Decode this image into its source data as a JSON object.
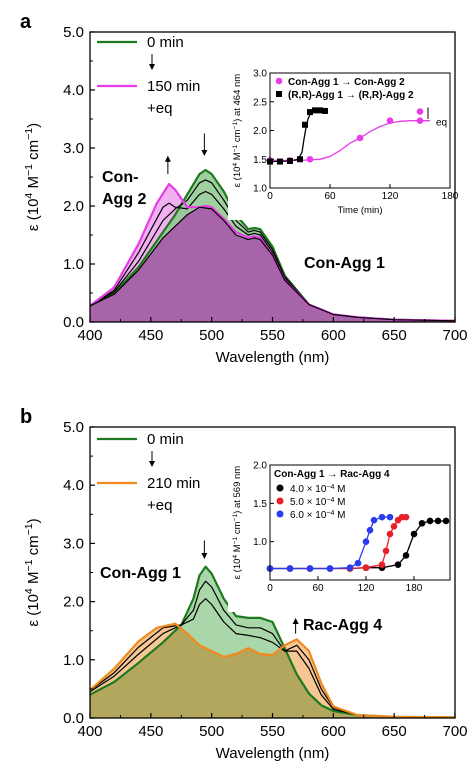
{
  "colors": {
    "green": "#1e7a1e",
    "magenta": "#e83ce8",
    "orange": "#f08a1e",
    "black": "#000000",
    "red": "#e8202a",
    "blue": "#2a3cf0",
    "fill_a": "#a85aa8",
    "fill_b_green": "#9ad09a",
    "fill_b_orange": "#f5c08a",
    "fill_b_olive": "#b3a35a"
  },
  "chart_data": [
    {
      "id": "a",
      "type": "line",
      "panel_label": "a",
      "xlabel": "Wavelength (nm)",
      "ylabel_pre": "ε (10",
      "ylabel_sup1": "4",
      "ylabel_mid": " M",
      "ylabel_sup2": "−1",
      "ylabel_mid2": " cm",
      "ylabel_sup3": "−1",
      "ylabel_post": ")",
      "xlim": [
        400,
        700
      ],
      "ylim": [
        0,
        5
      ],
      "xticks": [
        "400",
        "450",
        "500",
        "550",
        "600",
        "650",
        "700"
      ],
      "yticks": [
        "0.0",
        "1.0",
        "2.0",
        "3.0",
        "4.0",
        "5.0"
      ],
      "legend": [
        {
          "label": "0 min",
          "color": "green"
        },
        {
          "label": "150 min",
          "color": "magenta"
        }
      ],
      "legend_extra": "+eq",
      "annotations": [
        {
          "text": "Con-",
          "color": "magenta"
        },
        {
          "text": "Agg 2",
          "color": "magenta"
        },
        {
          "text": "Con-Agg 1",
          "color": "green"
        }
      ],
      "series": [
        {
          "name": "0 min",
          "color": "green",
          "x": [
            400,
            420,
            440,
            460,
            470,
            480,
            490,
            495,
            500,
            510,
            520,
            530,
            535,
            540,
            550,
            560,
            580,
            600,
            620,
            650,
            700
          ],
          "y": [
            0.28,
            0.5,
            0.95,
            1.55,
            1.85,
            2.2,
            2.55,
            2.62,
            2.55,
            2.25,
            1.85,
            1.6,
            1.62,
            1.6,
            1.3,
            0.8,
            0.3,
            0.13,
            0.08,
            0.04,
            0.02
          ]
        },
        {
          "name": "intermediate 1",
          "color": "black",
          "x": [
            400,
            420,
            440,
            460,
            470,
            480,
            490,
            495,
            500,
            510,
            520,
            530,
            535,
            540,
            550,
            560,
            580,
            600,
            620,
            650,
            700
          ],
          "y": [
            0.28,
            0.52,
            1.05,
            1.75,
            1.95,
            2.1,
            2.4,
            2.45,
            2.4,
            2.1,
            1.75,
            1.55,
            1.58,
            1.55,
            1.25,
            0.78,
            0.3,
            0.13,
            0.08,
            0.04,
            0.02
          ]
        },
        {
          "name": "intermediate 2",
          "color": "black",
          "x": [
            400,
            420,
            440,
            460,
            465,
            470,
            480,
            490,
            495,
            500,
            510,
            520,
            530,
            535,
            540,
            550,
            560,
            580,
            600,
            620,
            650,
            700
          ],
          "y": [
            0.28,
            0.55,
            1.2,
            1.98,
            2.05,
            1.98,
            1.95,
            2.2,
            2.25,
            2.2,
            1.95,
            1.65,
            1.5,
            1.53,
            1.5,
            1.2,
            0.75,
            0.3,
            0.13,
            0.08,
            0.04,
            0.02
          ]
        },
        {
          "name": "150 min",
          "color": "magenta",
          "x": [
            400,
            420,
            440,
            455,
            465,
            470,
            480,
            490,
            495,
            500,
            510,
            520,
            530,
            535,
            540,
            550,
            560,
            580,
            600,
            620,
            650,
            700
          ],
          "y": [
            0.28,
            0.6,
            1.35,
            2.05,
            2.38,
            2.28,
            1.98,
            1.98,
            2.0,
            1.98,
            1.78,
            1.55,
            1.45,
            1.48,
            1.45,
            1.15,
            0.72,
            0.3,
            0.13,
            0.08,
            0.04,
            0.02
          ]
        },
        {
          "name": "baseline",
          "color": "black",
          "x": [
            400,
            420,
            440,
            460,
            480,
            490,
            500,
            510,
            520,
            530,
            535,
            540,
            550,
            560,
            580,
            600,
            620,
            650,
            700
          ],
          "y": [
            0.28,
            0.48,
            0.9,
            1.45,
            1.85,
            1.98,
            1.95,
            1.75,
            1.5,
            1.42,
            1.45,
            1.42,
            1.15,
            0.72,
            0.3,
            0.13,
            0.08,
            0.04,
            0.02
          ]
        }
      ],
      "inset": {
        "xlabel": "Time (min)",
        "ylabel_pre": "ε (10",
        "ylabel_sup1": "4",
        "ylabel_mid": " M",
        "ylabel_sup2": "−1",
        "ylabel_mid2": " cm",
        "ylabel_sup3": "−1",
        "ylabel_post": ") at 464 nm",
        "xlim": [
          0,
          180
        ],
        "ylim": [
          1.0,
          3.0
        ],
        "xticks": [
          "0",
          "60",
          "120",
          "180"
        ],
        "yticks": [
          "1.0",
          "1.5",
          "2.0",
          "2.5",
          "3.0"
        ],
        "legend": [
          {
            "label": "Con-Agg 1",
            "arrow": "→",
            "target": "Con-Agg 2",
            "color": "magenta",
            "marker": "circle"
          },
          {
            "label": "(R,R)-Agg 1",
            "arrow": "→",
            "target": "(R,R)-Agg 2",
            "color": "black",
            "marker": "square"
          }
        ],
        "eq_label": "eq",
        "series": [
          {
            "name": "Con-Agg 1 → Con-Agg 2",
            "color": "magenta",
            "marker": "circle",
            "x": [
              0,
              20,
              40,
              90,
              120,
              150
            ],
            "y": [
              1.48,
              1.48,
              1.5,
              1.87,
              2.17,
              2.17
            ]
          },
          {
            "name": "(R,R)-Agg 1 → (R,R)-Agg 2",
            "color": "black",
            "marker": "square",
            "x": [
              0,
              10,
              20,
              30,
              35,
              40,
              45,
              50,
              55
            ],
            "y": [
              1.46,
              1.46,
              1.47,
              1.5,
              2.1,
              2.32,
              2.35,
              2.35,
              2.34
            ]
          },
          {
            "name": "eq",
            "color": "magenta",
            "marker": "circle",
            "x": [
              150
            ],
            "y": [
              2.33
            ]
          }
        ],
        "fits": [
          {
            "color": "magenta",
            "x": [
              0,
              30,
              50,
              60,
              70,
              80,
              90,
              100,
              110,
              120,
              130,
              140,
              150,
              160
            ],
            "y": [
              1.48,
              1.48,
              1.5,
              1.55,
              1.65,
              1.78,
              1.87,
              1.98,
              2.07,
              2.13,
              2.16,
              2.17,
              2.17,
              2.17
            ]
          },
          {
            "color": "black",
            "x": [
              0,
              20,
              28,
              32,
              34,
              36,
              38,
              40,
              44,
              50,
              55
            ],
            "y": [
              1.46,
              1.47,
              1.5,
              1.62,
              1.85,
              2.05,
              2.2,
              2.28,
              2.33,
              2.35,
              2.35
            ]
          }
        ]
      }
    },
    {
      "id": "b",
      "type": "line",
      "panel_label": "b",
      "xlabel": "Wavelength (nm)",
      "ylabel_pre": "ε (10",
      "ylabel_sup1": "4",
      "ylabel_mid": " M",
      "ylabel_sup2": "−1",
      "ylabel_mid2": " cm",
      "ylabel_sup3": "−1",
      "ylabel_post": ")",
      "xlim": [
        400,
        700
      ],
      "ylim": [
        0,
        5
      ],
      "xticks": [
        "400",
        "450",
        "500",
        "550",
        "600",
        "650",
        "700"
      ],
      "yticks": [
        "0.0",
        "1.0",
        "2.0",
        "3.0",
        "4.0",
        "5.0"
      ],
      "legend": [
        {
          "label": "0 min",
          "color": "green"
        },
        {
          "label": "210 min",
          "color": "orange"
        }
      ],
      "legend_extra": "+eq",
      "annotations": [
        {
          "text": "Con-Agg 1",
          "color": "green"
        },
        {
          "text": "Rac-Agg 4",
          "color": "orange"
        }
      ],
      "series": [
        {
          "name": "0 min",
          "color": "green",
          "x": [
            400,
            420,
            440,
            460,
            475,
            485,
            490,
            495,
            500,
            510,
            520,
            530,
            540,
            550,
            560,
            570,
            580,
            590,
            600,
            620,
            650,
            700
          ],
          "y": [
            0.4,
            0.62,
            0.95,
            1.3,
            1.6,
            2.05,
            2.45,
            2.6,
            2.48,
            2.05,
            1.75,
            1.72,
            1.72,
            1.65,
            1.2,
            0.75,
            0.42,
            0.22,
            0.12,
            0.05,
            0.02,
            0.01
          ]
        },
        {
          "name": "intermediate 1",
          "color": "black",
          "x": [
            400,
            420,
            440,
            460,
            475,
            485,
            490,
            495,
            500,
            510,
            520,
            530,
            540,
            550,
            560,
            570,
            580,
            590,
            600,
            620,
            650,
            700
          ],
          "y": [
            0.45,
            0.72,
            1.1,
            1.45,
            1.6,
            1.85,
            2.2,
            2.35,
            2.25,
            1.85,
            1.6,
            1.55,
            1.55,
            1.45,
            1.15,
            1.15,
            0.85,
            0.4,
            0.15,
            0.05,
            0.02,
            0.01
          ]
        },
        {
          "name": "intermediate 2",
          "color": "black",
          "x": [
            400,
            420,
            440,
            460,
            475,
            485,
            490,
            495,
            500,
            510,
            520,
            530,
            540,
            550,
            560,
            570,
            580,
            590,
            600,
            620,
            650,
            700
          ],
          "y": [
            0.47,
            0.78,
            1.22,
            1.55,
            1.6,
            1.7,
            1.95,
            2.05,
            1.95,
            1.65,
            1.45,
            1.42,
            1.38,
            1.3,
            1.15,
            1.25,
            1.0,
            0.5,
            0.18,
            0.05,
            0.02,
            0.01
          ]
        },
        {
          "name": "210 min",
          "color": "orange",
          "x": [
            400,
            420,
            440,
            455,
            470,
            480,
            490,
            500,
            510,
            520,
            530,
            540,
            550,
            560,
            570,
            580,
            590,
            600,
            620,
            650,
            700
          ],
          "y": [
            0.48,
            0.85,
            1.32,
            1.55,
            1.62,
            1.45,
            1.25,
            1.15,
            1.05,
            1.1,
            1.2,
            1.1,
            1.08,
            1.25,
            1.35,
            1.15,
            0.6,
            0.2,
            0.05,
            0.02,
            0.01
          ]
        }
      ],
      "inset": {
        "xlabel": "",
        "ylabel_pre": "ε (10",
        "ylabel_sup1": "4",
        "ylabel_mid": " M",
        "ylabel_sup2": "−1",
        "ylabel_mid2": " cm",
        "ylabel_sup3": "−1",
        "ylabel_post": ") at 569 nm",
        "title": "Con-Agg 1 → Rac-Agg 4",
        "xlim": [
          0,
          225
        ],
        "ylim": [
          0.5,
          2.0
        ],
        "xticks": [
          "0",
          "60",
          "120",
          "180"
        ],
        "yticks": [
          "1.0",
          "1.5",
          "2.0"
        ],
        "legend": [
          {
            "label": "4.0 × 10",
            "sup": "−4",
            "unit": " M",
            "color": "black"
          },
          {
            "label": "5.0 × 10",
            "sup": "−4",
            "unit": " M",
            "color": "red"
          },
          {
            "label": "6.0 × 10",
            "sup": "−4",
            "unit": " M",
            "color": "blue"
          }
        ],
        "series": [
          {
            "name": "4.0 × 10^-4 M",
            "color": "black",
            "x": [
              0,
              25,
              50,
              75,
              100,
              120,
              140,
              160,
              170,
              180,
              190,
              200,
              210,
              220
            ],
            "y": [
              0.65,
              0.65,
              0.65,
              0.65,
              0.65,
              0.66,
              0.66,
              0.7,
              0.82,
              1.1,
              1.24,
              1.27,
              1.27,
              1.27
            ]
          },
          {
            "name": "5.0 × 10^-4 M",
            "color": "red",
            "x": [
              0,
              25,
              50,
              75,
              100,
              120,
              140,
              145,
              150,
              155,
              160,
              165,
              170
            ],
            "y": [
              0.65,
              0.65,
              0.65,
              0.65,
              0.65,
              0.66,
              0.7,
              0.88,
              1.1,
              1.2,
              1.28,
              1.32,
              1.32
            ]
          },
          {
            "name": "6.0 × 10^-4 M",
            "color": "blue",
            "x": [
              0,
              25,
              50,
              75,
              100,
              110,
              120,
              125,
              130,
              140,
              150
            ],
            "y": [
              0.65,
              0.65,
              0.65,
              0.65,
              0.66,
              0.72,
              1.0,
              1.15,
              1.28,
              1.32,
              1.32
            ]
          }
        ]
      }
    }
  ]
}
